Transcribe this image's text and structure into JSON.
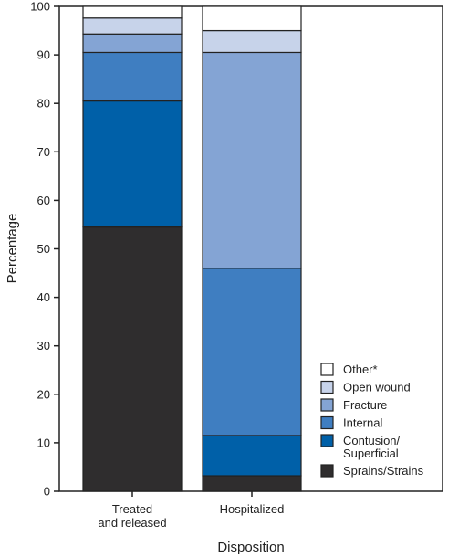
{
  "chart_data": {
    "type": "bar",
    "stacked": true,
    "categories": [
      "Treated\nand released",
      "Hospitalized"
    ],
    "series": [
      {
        "name": "Sprains/Strains",
        "color": "#2f2d2e",
        "values": [
          54.5,
          3.2
        ]
      },
      {
        "name": "Contusion/\nSuperficial",
        "color": "#0060a8",
        "values": [
          26.0,
          8.3
        ]
      },
      {
        "name": "Internal",
        "color": "#3f7ec1",
        "values": [
          10.0,
          34.5
        ]
      },
      {
        "name": "Fracture",
        "color": "#84a4d4",
        "values": [
          3.8,
          44.5
        ]
      },
      {
        "name": "Open wound",
        "color": "#c7d3ea",
        "values": [
          3.3,
          4.5
        ]
      },
      {
        "name": "Other*",
        "color": "#ffffff",
        "values": [
          2.4,
          5.0
        ]
      }
    ],
    "xlabel": "Disposition",
    "ylabel": "Percentage",
    "ylim": [
      0,
      100
    ],
    "yticks": [
      0,
      10,
      20,
      30,
      40,
      50,
      60,
      70,
      80,
      90,
      100
    ],
    "grid": false,
    "legend_position": "bottom-right",
    "legend_order": [
      "Other*",
      "Open wound",
      "Fracture",
      "Internal",
      "Contusion/\nSuperficial",
      "Sprains/Strains"
    ]
  }
}
